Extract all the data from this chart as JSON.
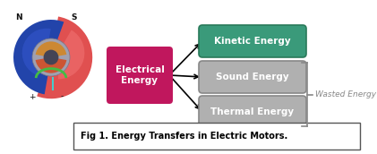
{
  "title": "Fig 1. Energy Transfers in Electric Motors.",
  "electrical_label": "Electrical\nEnergy",
  "electrical_color": "#c0175d",
  "output_labels": [
    "Kinetic Energy",
    "Sound Energy",
    "Thermal Energy"
  ],
  "output_colors": [
    "#3a9a7a",
    "#b0b0b0",
    "#b0b0b0"
  ],
  "output_edge_colors": [
    "#2a7a5a",
    "#888888",
    "#888888"
  ],
  "output_text_colors": [
    "#ffffff",
    "#ffffff",
    "#ffffff"
  ],
  "wasted_label": "Wasted Energy",
  "bg_color": "#ffffff",
  "fig_caption_color": "#000000",
  "arrow_color": "#000000",
  "bracket_color": "#888888",
  "wasted_color": "#888888"
}
